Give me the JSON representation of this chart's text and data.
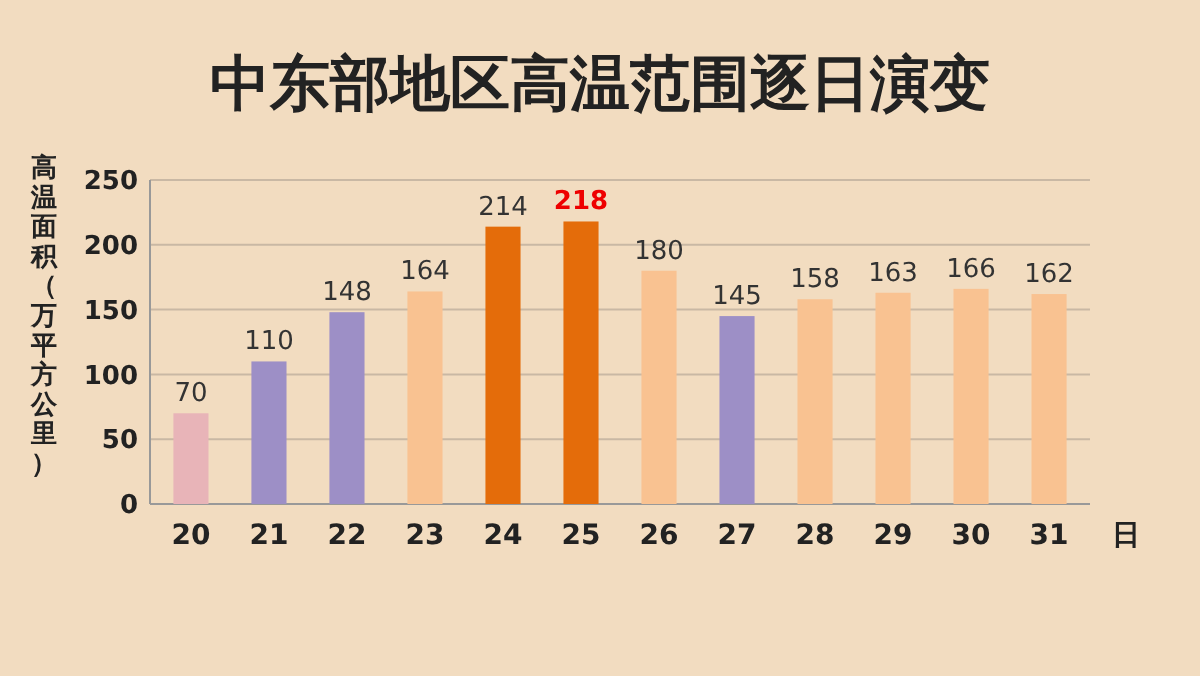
{
  "chart_data": {
    "type": "bar",
    "title": "中东部地区高温范围逐日演变",
    "ylabel": "高温面积（万平方公里）",
    "xlabel": "日",
    "categories": [
      "20",
      "21",
      "22",
      "23",
      "24",
      "25",
      "26",
      "27",
      "28",
      "29",
      "30",
      "31"
    ],
    "values": [
      70,
      110,
      148,
      164,
      214,
      218,
      180,
      145,
      158,
      163,
      166,
      162
    ],
    "colors": [
      "#e8b4b8",
      "#9d8fc6",
      "#9d8fc6",
      "#f9c291",
      "#e46c0a",
      "#e46c0a",
      "#f9c291",
      "#9d8fc6",
      "#f9c291",
      "#f9c291",
      "#f9c291",
      "#f9c291"
    ],
    "ylim": [
      0,
      250
    ],
    "yticks": [
      0,
      50,
      100,
      150,
      200,
      250
    ],
    "grid": "y",
    "data_labels": true
  }
}
